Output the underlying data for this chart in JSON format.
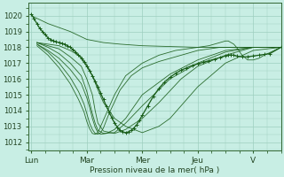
{
  "bg_color": "#c8eee4",
  "grid_color": "#9ecfbf",
  "line_color": "#1a5e1a",
  "ylim": [
    1011.5,
    1020.8
  ],
  "yticks": [
    1012,
    1013,
    1014,
    1015,
    1016,
    1017,
    1018,
    1019,
    1020
  ],
  "xlabel": "Pression niveau de la mer( hPa )",
  "xtick_labels": [
    "Lun",
    "Mar",
    "Mer",
    "Jeu",
    "V"
  ],
  "xtick_pos": [
    0,
    1,
    2,
    3,
    4
  ],
  "xlim": [
    -0.05,
    4.5
  ],
  "n_days": 4.5,
  "ensemble_lines": [
    {
      "x": [
        0,
        0.3,
        0.7,
        1.0,
        1.3,
        1.6,
        2.0,
        2.5,
        3.0,
        3.5,
        4.0,
        4.5
      ],
      "y": [
        1020.0,
        1019.5,
        1019.0,
        1018.5,
        1018.3,
        1018.2,
        1018.1,
        1018.05,
        1018.0,
        1018.0,
        1018.0,
        1018.0
      ],
      "has_marker": false
    },
    {
      "x": [
        0.1,
        0.3,
        0.5,
        0.7,
        0.9,
        1.0,
        1.1,
        1.2,
        1.3,
        1.5,
        1.7,
        2.0,
        2.3,
        2.5,
        3.0,
        3.5,
        4.0,
        4.5
      ],
      "y": [
        1018.3,
        1018.2,
        1018.1,
        1017.8,
        1017.4,
        1016.9,
        1016.2,
        1015.3,
        1014.5,
        1013.5,
        1013.0,
        1012.6,
        1013.0,
        1013.5,
        1015.5,
        1017.0,
        1017.8,
        1018.0
      ],
      "has_marker": false
    },
    {
      "x": [
        0.1,
        0.3,
        0.5,
        0.7,
        0.9,
        1.0,
        1.1,
        1.15,
        1.2,
        1.3,
        1.5,
        1.7,
        2.0,
        2.3,
        2.7,
        3.0,
        3.5,
        4.0,
        4.5
      ],
      "y": [
        1018.3,
        1018.1,
        1017.9,
        1017.4,
        1016.8,
        1016.0,
        1015.0,
        1014.0,
        1013.2,
        1012.7,
        1012.55,
        1012.8,
        1013.5,
        1014.5,
        1016.0,
        1016.8,
        1017.5,
        1018.0,
        1018.0
      ],
      "has_marker": false
    },
    {
      "x": [
        0.1,
        0.3,
        0.5,
        0.7,
        0.9,
        1.0,
        1.05,
        1.1,
        1.15,
        1.2,
        1.3,
        1.5,
        1.7,
        2.0,
        2.5,
        3.0,
        3.5,
        4.0,
        4.5
      ],
      "y": [
        1018.3,
        1018.0,
        1017.6,
        1017.0,
        1016.2,
        1015.2,
        1014.5,
        1013.8,
        1013.2,
        1012.75,
        1012.55,
        1012.6,
        1013.2,
        1014.3,
        1016.0,
        1017.0,
        1017.7,
        1018.0,
        1018.0
      ],
      "has_marker": false
    },
    {
      "x": [
        0.1,
        0.3,
        0.5,
        0.7,
        0.9,
        1.0,
        1.05,
        1.1,
        1.15,
        1.2,
        1.25,
        1.35,
        1.5,
        1.7,
        2.0,
        2.5,
        3.0,
        3.5,
        4.0,
        4.5
      ],
      "y": [
        1018.2,
        1017.8,
        1017.3,
        1016.6,
        1015.7,
        1014.8,
        1014.2,
        1013.5,
        1012.95,
        1012.6,
        1012.5,
        1012.55,
        1012.8,
        1013.5,
        1015.0,
        1016.3,
        1017.2,
        1017.8,
        1018.0,
        1018.0
      ],
      "has_marker": false
    },
    {
      "x": [
        0.1,
        0.3,
        0.5,
        0.7,
        0.85,
        0.95,
        1.0,
        1.05,
        1.1,
        1.15,
        1.2,
        1.25,
        1.3,
        1.4,
        1.6,
        1.8,
        2.0,
        2.3,
        2.6,
        2.8,
        3.0,
        3.2,
        3.4,
        3.6,
        3.8,
        4.0,
        4.2,
        4.5
      ],
      "y": [
        1018.2,
        1017.7,
        1017.0,
        1016.1,
        1015.2,
        1014.4,
        1013.8,
        1013.2,
        1012.8,
        1012.55,
        1012.5,
        1012.6,
        1012.9,
        1013.8,
        1015.3,
        1016.2,
        1016.7,
        1017.1,
        1017.4,
        1017.6,
        1017.8,
        1017.9,
        1018.0,
        1018.0,
        1018.0,
        1018.0,
        1018.0,
        1018.0
      ],
      "has_marker": false
    },
    {
      "x": [
        0.1,
        0.3,
        0.5,
        0.7,
        0.85,
        0.95,
        1.0,
        1.05,
        1.1,
        1.15,
        1.2,
        1.25,
        1.35,
        1.5,
        1.7,
        2.0,
        2.3,
        2.6,
        2.8,
        3.0,
        3.2,
        3.4,
        3.5,
        3.55,
        3.6,
        3.65,
        3.7,
        3.8,
        3.9,
        4.0,
        4.1,
        4.2,
        4.5
      ],
      "y": [
        1018.1,
        1017.5,
        1016.7,
        1015.7,
        1014.7,
        1013.9,
        1013.3,
        1012.85,
        1012.55,
        1012.5,
        1012.6,
        1013.0,
        1013.8,
        1015.0,
        1016.2,
        1017.0,
        1017.5,
        1017.8,
        1017.9,
        1018.0,
        1018.1,
        1018.3,
        1018.4,
        1018.4,
        1018.3,
        1018.2,
        1018.0,
        1017.5,
        1017.2,
        1017.2,
        1017.3,
        1017.5,
        1018.0
      ],
      "has_marker": false
    },
    {
      "x": [
        0.0,
        0.05,
        0.1,
        0.15,
        0.2,
        0.25,
        0.3,
        0.35,
        0.4,
        0.45,
        0.5,
        0.55,
        0.6,
        0.65,
        0.7,
        0.75,
        0.8,
        0.85,
        0.9,
        0.95,
        1.0,
        1.05,
        1.1,
        1.15,
        1.2,
        1.25,
        1.3,
        1.35,
        1.4,
        1.45,
        1.5,
        1.55,
        1.6,
        1.65,
        1.7,
        1.75,
        1.8,
        1.85,
        1.9,
        1.95,
        2.0,
        2.1,
        2.2,
        2.3,
        2.4,
        2.5,
        2.6,
        2.7,
        2.8,
        2.9,
        3.0,
        3.1,
        3.2,
        3.3,
        3.4,
        3.5,
        3.55,
        3.6,
        3.65,
        3.7,
        3.8,
        3.9,
        4.0,
        4.1,
        4.2,
        4.3,
        4.5
      ],
      "y": [
        1020.1,
        1019.8,
        1019.5,
        1019.2,
        1019.0,
        1018.8,
        1018.6,
        1018.5,
        1018.4,
        1018.35,
        1018.3,
        1018.25,
        1018.2,
        1018.1,
        1018.0,
        1017.85,
        1017.7,
        1017.5,
        1017.3,
        1017.05,
        1016.8,
        1016.5,
        1016.2,
        1015.85,
        1015.5,
        1015.1,
        1014.7,
        1014.3,
        1013.9,
        1013.55,
        1013.2,
        1012.95,
        1012.75,
        1012.65,
        1012.6,
        1012.65,
        1012.75,
        1012.9,
        1013.1,
        1013.4,
        1013.7,
        1014.3,
        1014.9,
        1015.4,
        1015.8,
        1016.1,
        1016.35,
        1016.55,
        1016.7,
        1016.85,
        1016.95,
        1017.05,
        1017.15,
        1017.25,
        1017.35,
        1017.45,
        1017.5,
        1017.52,
        1017.5,
        1017.45,
        1017.4,
        1017.4,
        1017.45,
        1017.5,
        1017.55,
        1017.6,
        1018.0
      ],
      "has_marker": true
    }
  ]
}
